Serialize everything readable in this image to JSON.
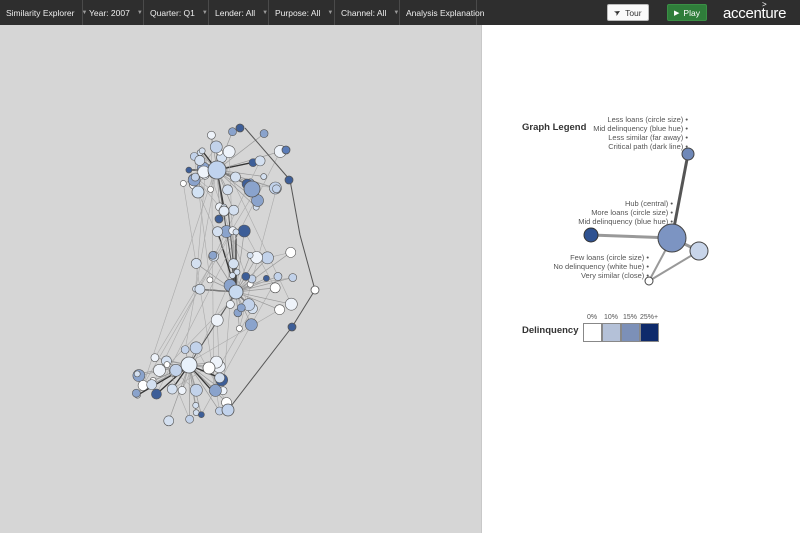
{
  "toolbar": {
    "menus": [
      {
        "label": "Similarity Explorer"
      },
      {
        "label": "Year: 2007"
      },
      {
        "label": "Quarter: Q1"
      },
      {
        "label": "Lender: All"
      },
      {
        "label": "Purpose: All"
      },
      {
        "label": "Channel: All"
      },
      {
        "label": "Analysis Explanation"
      }
    ],
    "tour_label": "Tour",
    "play_label": "Play",
    "logo_text": "accenture",
    "logo_mark": ">"
  },
  "legend": {
    "title": "Graph Legend",
    "top_labels": [
      "Less loans (circle size) •",
      "Mid delinquency (blue hue) •",
      "Less similar (far away) •",
      "Critical path (dark line) •"
    ],
    "mid_labels": [
      "Hub (central) •",
      "More loans (circle size) •",
      "Mid delinquency (blue hue) •"
    ],
    "bottom_labels": [
      "Few loans (circle size) •",
      "No delinquency (white hue) •",
      "Very similar (close) •"
    ]
  },
  "delinquency": {
    "title": "Delinquency",
    "scale": [
      {
        "label": "0%",
        "color": "#ffffff"
      },
      {
        "label": "10%",
        "color": "#b4c1d8"
      },
      {
        "label": "15%",
        "color": "#7c90b8"
      },
      {
        "label": "25%+",
        "color": "#0e2a6b"
      }
    ]
  },
  "colors": {
    "toolbar_bg": "#2e2e2e",
    "play_green": "#2f7d3a",
    "node_dark": "#3d5e98",
    "node_mid": "#8aa3cc",
    "node_light": "#d4e0f0"
  }
}
